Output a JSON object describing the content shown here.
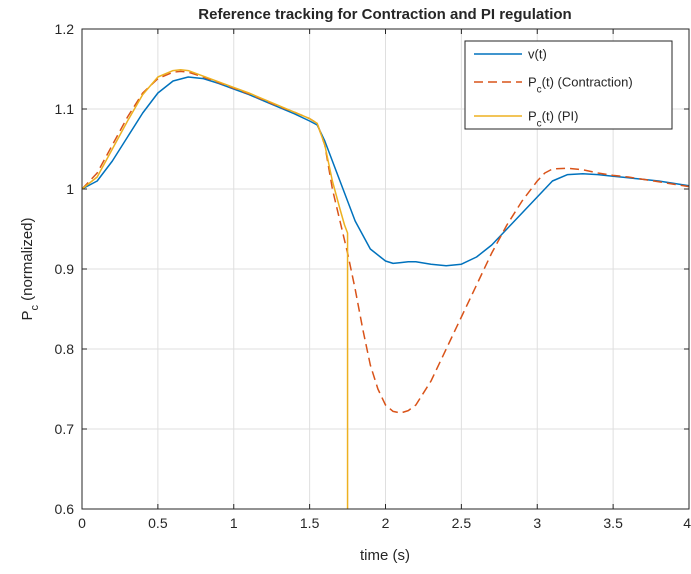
{
  "chart_data": {
    "type": "line",
    "title": "Reference tracking for Contraction and PI regulation",
    "xlabel": "time (s)",
    "ylabel_main": "P",
    "ylabel_sub": "c",
    "ylabel_rest": " (normalized)",
    "xlim": [
      0,
      4
    ],
    "ylim": [
      0.6,
      1.2
    ],
    "xticks": [
      0,
      0.5,
      1,
      1.5,
      2,
      2.5,
      3,
      3.5,
      4
    ],
    "xtick_labels": [
      "0",
      "0.5",
      "1",
      "1.5",
      "2",
      "2.5",
      "3",
      "3.5",
      "4"
    ],
    "yticks": [
      0.6,
      0.7,
      0.8,
      0.9,
      1.0,
      1.1,
      1.2
    ],
    "ytick_labels": [
      "0.6",
      "0.7",
      "0.8",
      "0.9",
      "1",
      "1.1",
      "1.2"
    ],
    "grid": true,
    "legend_position": "top-right",
    "series": [
      {
        "name": "v(t)",
        "legend_main": "v(t)",
        "legend_sub": "",
        "legend_rest": "",
        "color": "#0072BD",
        "dash": "solid",
        "x": [
          0,
          0.1,
          0.2,
          0.3,
          0.4,
          0.5,
          0.6,
          0.7,
          0.8,
          0.9,
          1.0,
          1.1,
          1.2,
          1.3,
          1.4,
          1.5,
          1.55,
          1.6,
          1.7,
          1.8,
          1.9,
          2.0,
          2.05,
          2.1,
          2.15,
          2.2,
          2.3,
          2.4,
          2.5,
          2.6,
          2.7,
          2.8,
          2.9,
          3.0,
          3.1,
          3.2,
          3.3,
          3.4,
          3.5,
          3.6,
          3.7,
          3.8,
          3.9,
          4.0
        ],
        "y": [
          1.0,
          1.01,
          1.035,
          1.065,
          1.095,
          1.12,
          1.135,
          1.14,
          1.138,
          1.132,
          1.125,
          1.118,
          1.11,
          1.102,
          1.094,
          1.085,
          1.08,
          1.06,
          1.01,
          0.96,
          0.925,
          0.91,
          0.907,
          0.908,
          0.909,
          0.909,
          0.906,
          0.904,
          0.906,
          0.915,
          0.93,
          0.95,
          0.97,
          0.99,
          1.01,
          1.018,
          1.019,
          1.018,
          1.016,
          1.014,
          1.012,
          1.01,
          1.007,
          1.004
        ]
      },
      {
        "name": "Pc(t) (Contraction)",
        "legend_main": "P",
        "legend_sub": "c",
        "legend_rest": "(t) (Contraction)",
        "color": "#D95319",
        "dash": "dashed",
        "x": [
          0,
          0.1,
          0.2,
          0.3,
          0.4,
          0.5,
          0.6,
          0.65,
          0.7,
          0.8,
          0.9,
          1.0,
          1.1,
          1.2,
          1.3,
          1.4,
          1.5,
          1.55,
          1.6,
          1.65,
          1.7,
          1.75,
          1.8,
          1.85,
          1.9,
          1.95,
          2.0,
          2.05,
          2.1,
          2.15,
          2.2,
          2.3,
          2.4,
          2.5,
          2.6,
          2.7,
          2.8,
          2.9,
          3.0,
          3.05,
          3.1,
          3.2,
          3.3,
          3.4,
          3.5,
          3.6,
          3.7,
          3.8,
          3.9,
          4.0
        ],
        "y": [
          1.0,
          1.02,
          1.055,
          1.09,
          1.12,
          1.138,
          1.146,
          1.147,
          1.146,
          1.14,
          1.133,
          1.126,
          1.119,
          1.111,
          1.103,
          1.096,
          1.088,
          1.082,
          1.055,
          1.0,
          0.96,
          0.92,
          0.875,
          0.825,
          0.78,
          0.75,
          0.73,
          0.722,
          0.72,
          0.723,
          0.73,
          0.76,
          0.8,
          0.84,
          0.88,
          0.92,
          0.955,
          0.985,
          1.01,
          1.02,
          1.025,
          1.026,
          1.024,
          1.02,
          1.017,
          1.015,
          1.012,
          1.009,
          1.006,
          1.003
        ]
      },
      {
        "name": "Pc(t) (PI)",
        "legend_main": "P",
        "legend_sub": "c",
        "legend_rest": "(t) (PI)",
        "color": "#EDB120",
        "dash": "solid",
        "x": [
          0,
          0.1,
          0.2,
          0.3,
          0.4,
          0.5,
          0.6,
          0.65,
          0.7,
          0.8,
          0.9,
          1.0,
          1.1,
          1.2,
          1.3,
          1.4,
          1.5,
          1.55,
          1.6,
          1.65,
          1.7,
          1.73,
          1.75,
          1.75
        ],
        "y": [
          1.0,
          1.015,
          1.05,
          1.085,
          1.118,
          1.14,
          1.148,
          1.149,
          1.148,
          1.141,
          1.134,
          1.127,
          1.12,
          1.112,
          1.104,
          1.096,
          1.088,
          1.082,
          1.055,
          1.01,
          0.975,
          0.955,
          0.945,
          0.6
        ]
      }
    ]
  }
}
